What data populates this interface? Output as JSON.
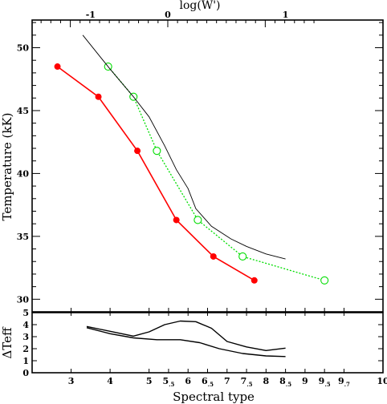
{
  "chart_data": [
    {
      "type": "line",
      "panel": "main",
      "ylabel": "Temperature (kK)",
      "xlabel_top": "log(W')",
      "xlabel_bottom": "Spectral type",
      "ylim": [
        29,
        52.2
      ],
      "xlim": [
        2,
        11
      ],
      "yticks": [
        30,
        35,
        40,
        45,
        50
      ],
      "top_axis": {
        "ticks": [
          -1,
          0,
          1
        ],
        "ticks_x": [
          3.5,
          5.48,
          8.5
        ]
      },
      "bottom_axis": {
        "tick_labels": [
          {
            "x": 3.0,
            "main": "3",
            "sub": ""
          },
          {
            "x": 4.0,
            "main": "4",
            "sub": ""
          },
          {
            "x": 5.0,
            "main": "5",
            "sub": ""
          },
          {
            "x": 5.5,
            "main": "5",
            "sub": ".5"
          },
          {
            "x": 6.0,
            "main": "6",
            "sub": ""
          },
          {
            "x": 6.5,
            "main": "6",
            "sub": ".5"
          },
          {
            "x": 7.0,
            "main": "7",
            "sub": ""
          },
          {
            "x": 7.5,
            "main": "7",
            "sub": ".5"
          },
          {
            "x": 8.0,
            "main": "8",
            "sub": ""
          },
          {
            "x": 8.5,
            "main": "8",
            "sub": ".5"
          },
          {
            "x": 9.0,
            "main": "9",
            "sub": ""
          },
          {
            "x": 9.5,
            "main": "9",
            "sub": ".5"
          },
          {
            "x": 10.0,
            "main": "9",
            "sub": ".7"
          },
          {
            "x": 11.0,
            "main": "10",
            "sub": ""
          }
        ]
      },
      "series": [
        {
          "style": "red-filled-circles",
          "color": "#ff0000",
          "points": [
            [
              2.65,
              48.5
            ],
            [
              3.7,
              46.1
            ],
            [
              4.7,
              41.8
            ],
            [
              5.7,
              36.3
            ],
            [
              6.65,
              33.4
            ],
            [
              7.7,
              31.5
            ]
          ]
        },
        {
          "style": "green-dotted-open-circles",
          "color": "#00dd00",
          "points": [
            [
              3.95,
              48.5
            ],
            [
              4.6,
              46.1
            ],
            [
              5.2,
              41.8
            ],
            [
              6.25,
              36.3
            ],
            [
              7.4,
              33.4
            ],
            [
              9.5,
              31.5
            ]
          ]
        },
        {
          "style": "black-thin-line",
          "color": "#000000",
          "points": [
            [
              3.3,
              51.0
            ],
            [
              4.0,
              48.3
            ],
            [
              4.6,
              46.1
            ],
            [
              5.0,
              44.5
            ],
            [
              5.4,
              42.2
            ],
            [
              5.7,
              40.3
            ],
            [
              6.0,
              38.8
            ],
            [
              6.2,
              37.2
            ],
            [
              6.6,
              35.8
            ],
            [
              7.1,
              34.8
            ],
            [
              7.5,
              34.2
            ],
            [
              8.0,
              33.6
            ],
            [
              8.5,
              33.2
            ]
          ]
        }
      ]
    },
    {
      "type": "line",
      "panel": "residual",
      "ylabel": "ΔTeff",
      "ylim": [
        0,
        5
      ],
      "yticks": [
        0,
        1,
        2,
        3,
        4,
        5
      ],
      "series": [
        {
          "color": "#000000",
          "points": [
            [
              3.4,
              3.85
            ],
            [
              4.0,
              3.45
            ],
            [
              4.6,
              3.05
            ],
            [
              5.0,
              3.4
            ],
            [
              5.4,
              4.0
            ],
            [
              5.8,
              4.3
            ],
            [
              6.2,
              4.25
            ],
            [
              6.6,
              3.7
            ],
            [
              7.0,
              2.6
            ],
            [
              7.5,
              2.15
            ],
            [
              8.0,
              1.85
            ],
            [
              8.5,
              2.05
            ]
          ]
        },
        {
          "color": "#000000",
          "points": [
            [
              3.4,
              3.75
            ],
            [
              4.0,
              3.25
            ],
            [
              4.6,
              2.9
            ],
            [
              5.2,
              2.75
            ],
            [
              5.8,
              2.75
            ],
            [
              6.3,
              2.5
            ],
            [
              6.8,
              2.0
            ],
            [
              7.4,
              1.6
            ],
            [
              8.0,
              1.4
            ],
            [
              8.5,
              1.35
            ]
          ]
        }
      ]
    }
  ]
}
